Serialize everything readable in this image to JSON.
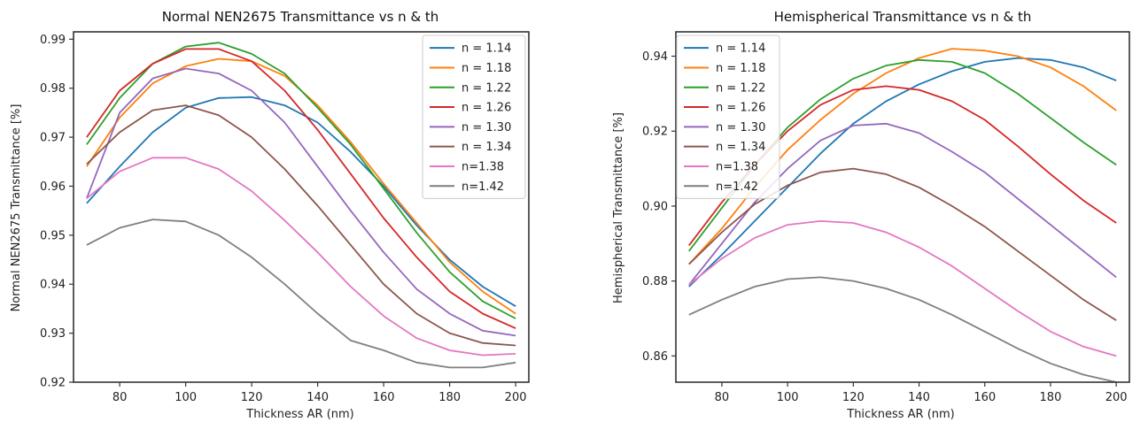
{
  "chart_data": [
    {
      "type": "line",
      "title": "Normal NEN2675 Transmittance vs n & th",
      "xlabel": "Thickness AR (nm)",
      "ylabel": "Normal NEN2675 Transmittance [%]",
      "xlim": [
        66,
        204
      ],
      "ylim": [
        0.92,
        0.9915
      ],
      "xticks": [
        80,
        100,
        120,
        140,
        160,
        180,
        200
      ],
      "yticks": [
        0.92,
        0.93,
        0.94,
        0.95,
        0.96,
        0.97,
        0.98,
        0.99
      ],
      "ytick_labels": [
        "0.92",
        "0.93",
        "0.94",
        "0.95",
        "0.96",
        "0.97",
        "0.98",
        "0.99"
      ],
      "legend_position": "top-right",
      "grid": false,
      "x": [
        70,
        80,
        90,
        100,
        110,
        120,
        130,
        140,
        150,
        160,
        170,
        180,
        190,
        200
      ],
      "series": [
        {
          "name": "n = 1.14",
          "color": "#1f77b4",
          "values": [
            0.9565,
            0.964,
            0.971,
            0.976,
            0.978,
            0.9782,
            0.9765,
            0.973,
            0.967,
            0.96,
            0.952,
            0.945,
            0.9395,
            0.9355
          ]
        },
        {
          "name": "n = 1.18",
          "color": "#ff7f0e",
          "values": [
            0.964,
            0.974,
            0.981,
            0.9845,
            0.986,
            0.9855,
            0.9825,
            0.9765,
            0.969,
            0.9605,
            0.9525,
            0.9445,
            0.9385,
            0.934
          ]
        },
        {
          "name": "n = 1.22",
          "color": "#2ca02c",
          "values": [
            0.9685,
            0.978,
            0.985,
            0.9885,
            0.9893,
            0.987,
            0.983,
            0.976,
            0.9685,
            0.9595,
            0.9505,
            0.9425,
            0.9365,
            0.933
          ]
        },
        {
          "name": "n = 1.26",
          "color": "#d62728",
          "values": [
            0.97,
            0.9795,
            0.985,
            0.988,
            0.988,
            0.9855,
            0.9795,
            0.9715,
            0.9625,
            0.9535,
            0.9455,
            0.9385,
            0.934,
            0.931
          ]
        },
        {
          "name": "n = 1.30",
          "color": "#9467bd",
          "values": [
            0.9575,
            0.975,
            0.982,
            0.984,
            0.983,
            0.9795,
            0.973,
            0.964,
            0.955,
            0.9465,
            0.939,
            0.934,
            0.9305,
            0.9295
          ]
        },
        {
          "name": "n = 1.34",
          "color": "#8c564b",
          "values": [
            0.9645,
            0.971,
            0.9755,
            0.9765,
            0.9745,
            0.97,
            0.9635,
            0.956,
            0.948,
            0.94,
            0.934,
            0.93,
            0.928,
            0.9275
          ]
        },
        {
          "name": "n=1.38",
          "color": "#e377c2",
          "values": [
            0.9575,
            0.963,
            0.9658,
            0.9658,
            0.9635,
            0.959,
            0.953,
            0.9465,
            0.9395,
            0.9335,
            0.929,
            0.9265,
            0.9255,
            0.9258
          ]
        },
        {
          "name": "n=1.42",
          "color": "#7f7f7f",
          "values": [
            0.948,
            0.9515,
            0.9532,
            0.9528,
            0.95,
            0.9455,
            0.94,
            0.934,
            0.9285,
            0.9265,
            0.924,
            0.923,
            0.923,
            0.924
          ]
        }
      ]
    },
    {
      "type": "line",
      "title": "Hemispherical Transmittance vs n & th",
      "xlabel": "Thickness AR (nm)",
      "ylabel": "Hemispherical Transmittance [%]",
      "xlim": [
        66,
        204
      ],
      "ylim": [
        0.853,
        0.9465
      ],
      "xticks": [
        80,
        100,
        120,
        140,
        160,
        180,
        200
      ],
      "yticks": [
        0.86,
        0.88,
        0.9,
        0.92,
        0.94
      ],
      "ytick_labels": [
        "0.86",
        "0.88",
        "0.90",
        "0.92",
        "0.94"
      ],
      "legend_position": "top-left",
      "grid": false,
      "x": [
        70,
        80,
        90,
        100,
        110,
        120,
        130,
        140,
        150,
        160,
        170,
        180,
        190,
        200
      ],
      "series": [
        {
          "name": "n = 1.14",
          "color": "#1f77b4",
          "values": [
            0.8785,
            0.887,
            0.896,
            0.905,
            0.914,
            0.922,
            0.928,
            0.9325,
            0.936,
            0.9385,
            0.9395,
            0.939,
            0.937,
            0.9335
          ]
        },
        {
          "name": "n = 1.18",
          "color": "#ff7f0e",
          "values": [
            0.8845,
            0.894,
            0.905,
            0.915,
            0.923,
            0.93,
            0.9355,
            0.9395,
            0.942,
            0.9415,
            0.94,
            0.937,
            0.932,
            0.9255
          ]
        },
        {
          "name": "n = 1.22",
          "color": "#2ca02c",
          "values": [
            0.888,
            0.8995,
            0.911,
            0.921,
            0.9285,
            0.934,
            0.9375,
            0.939,
            0.9385,
            0.9355,
            0.93,
            0.9235,
            0.917,
            0.911
          ]
        },
        {
          "name": "n = 1.26",
          "color": "#d62728",
          "values": [
            0.8895,
            0.901,
            0.911,
            0.92,
            0.927,
            0.931,
            0.932,
            0.931,
            0.928,
            0.923,
            0.916,
            0.9085,
            0.9015,
            0.8955
          ]
        },
        {
          "name": "n = 1.30",
          "color": "#9467bd",
          "values": [
            0.879,
            0.89,
            0.901,
            0.91,
            0.9175,
            0.9215,
            0.922,
            0.9195,
            0.9145,
            0.909,
            0.902,
            0.895,
            0.888,
            0.881
          ]
        },
        {
          "name": "n = 1.34",
          "color": "#8c564b",
          "values": [
            0.8845,
            0.893,
            0.9005,
            0.9055,
            0.909,
            0.91,
            0.9085,
            0.905,
            0.9,
            0.8945,
            0.888,
            0.8815,
            0.875,
            0.8695
          ]
        },
        {
          "name": "n=1.38",
          "color": "#e377c2",
          "values": [
            0.879,
            0.886,
            0.8915,
            0.895,
            0.896,
            0.8955,
            0.893,
            0.889,
            0.884,
            0.878,
            0.872,
            0.8665,
            0.8625,
            0.86
          ]
        },
        {
          "name": "n=1.42",
          "color": "#7f7f7f",
          "values": [
            0.871,
            0.875,
            0.8785,
            0.8805,
            0.881,
            0.88,
            0.878,
            0.875,
            0.871,
            0.8665,
            0.862,
            0.858,
            0.855,
            0.853
          ]
        }
      ]
    }
  ]
}
